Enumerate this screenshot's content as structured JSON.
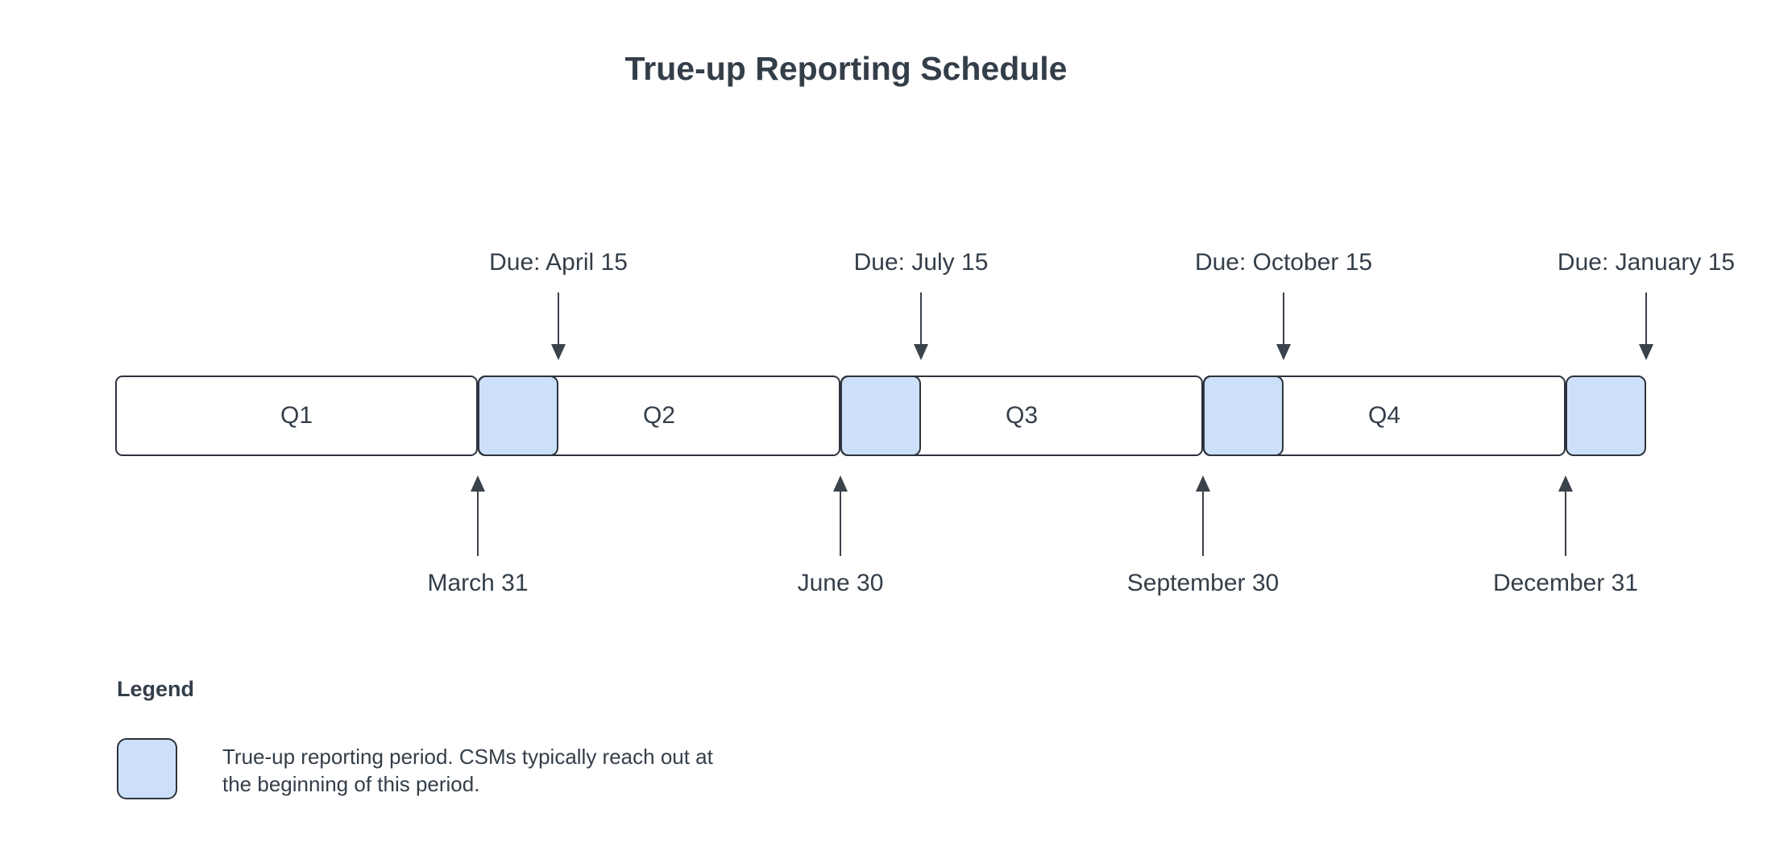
{
  "title": "True-up Reporting Schedule",
  "colors": {
    "period_fill": "#cce0fa",
    "border": "#2d333c",
    "arrow": "#3a424b",
    "text": "#343e49",
    "background": "#ffffff"
  },
  "diagram": {
    "quarters": [
      {
        "label": "Q1",
        "end_date": "March 31",
        "due": "Due: April 15"
      },
      {
        "label": "Q2",
        "end_date": "June 30",
        "due": "Due: July 15"
      },
      {
        "label": "Q3",
        "end_date": "September 30",
        "due": "Due: October 15"
      },
      {
        "label": "Q4",
        "end_date": "December 31",
        "due": "Due: January 15"
      }
    ]
  },
  "legend": {
    "heading": "Legend",
    "description": "True-up reporting period. CSMs typically reach out at\nthe beginning of this period."
  }
}
